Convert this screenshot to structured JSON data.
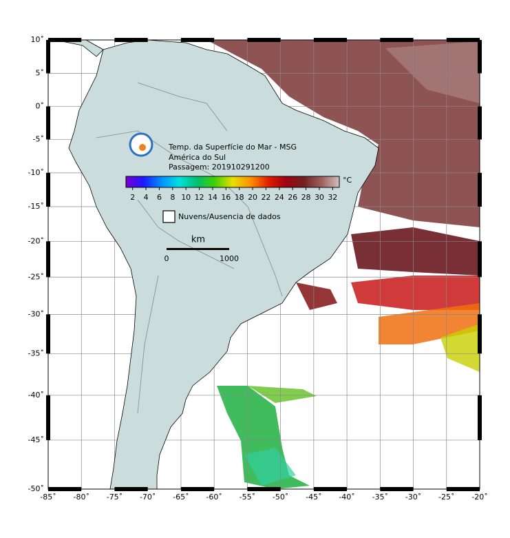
{
  "map": {
    "title_lines": [
      "Temp. da Superfície do Mar - MSG",
      "América do Sul",
      "Passagem: 201910291200"
    ],
    "lon_ticks": [
      {
        "value": -85,
        "label": "-85˚"
      },
      {
        "value": -80,
        "label": "-80˚"
      },
      {
        "value": -75,
        "label": "-75˚"
      },
      {
        "value": -70,
        "label": "-70˚"
      },
      {
        "value": -65,
        "label": "-65˚"
      },
      {
        "value": -60,
        "label": "-60˚"
      },
      {
        "value": -55,
        "label": "-55˚"
      },
      {
        "value": -50,
        "label": "-50˚"
      },
      {
        "value": -45,
        "label": "-45˚"
      },
      {
        "value": -40,
        "label": "-40˚"
      },
      {
        "value": -35,
        "label": "-35˚"
      },
      {
        "value": -30,
        "label": "-30˚"
      },
      {
        "value": -25,
        "label": "-25˚"
      },
      {
        "value": -20,
        "label": "-20˚"
      }
    ],
    "lat_ticks": [
      {
        "value": 10,
        "label": "10˚"
      },
      {
        "value": 5,
        "label": "5˚"
      },
      {
        "value": 0,
        "label": "0˚"
      },
      {
        "value": -5,
        "label": "-5˚"
      },
      {
        "value": -10,
        "label": "-10˚"
      },
      {
        "value": -15,
        "label": "-15˚"
      },
      {
        "value": -20,
        "label": "-20˚"
      },
      {
        "value": -25,
        "label": "-25˚"
      },
      {
        "value": -30,
        "label": "-30˚"
      },
      {
        "value": -35,
        "label": "-35˚"
      },
      {
        "value": -40,
        "label": "-40˚"
      },
      {
        "value": -45,
        "label": "-45˚"
      },
      {
        "value": -50,
        "label": "-50˚"
      }
    ],
    "xlim": [
      -85,
      -20
    ],
    "ylim": [
      -50,
      10
    ],
    "grid": true,
    "colorbar": {
      "unit": "°C",
      "lim": [
        1,
        33
      ],
      "ticks": [
        2,
        4,
        6,
        8,
        10,
        12,
        14,
        16,
        18,
        20,
        22,
        24,
        26,
        28,
        30,
        32
      ],
      "colors": [
        "#7a00d0",
        "#1a1aff",
        "#0090ff",
        "#00e0e0",
        "#00c070",
        "#40d000",
        "#e8e000",
        "#ff9000",
        "#e02000",
        "#a00010",
        "#702020",
        "#a06060",
        "#d0c0c0"
      ]
    },
    "legend": "Nuvens/Ausencia de dados",
    "scale": {
      "unit": "km",
      "start": "0",
      "end": "1000"
    }
  }
}
